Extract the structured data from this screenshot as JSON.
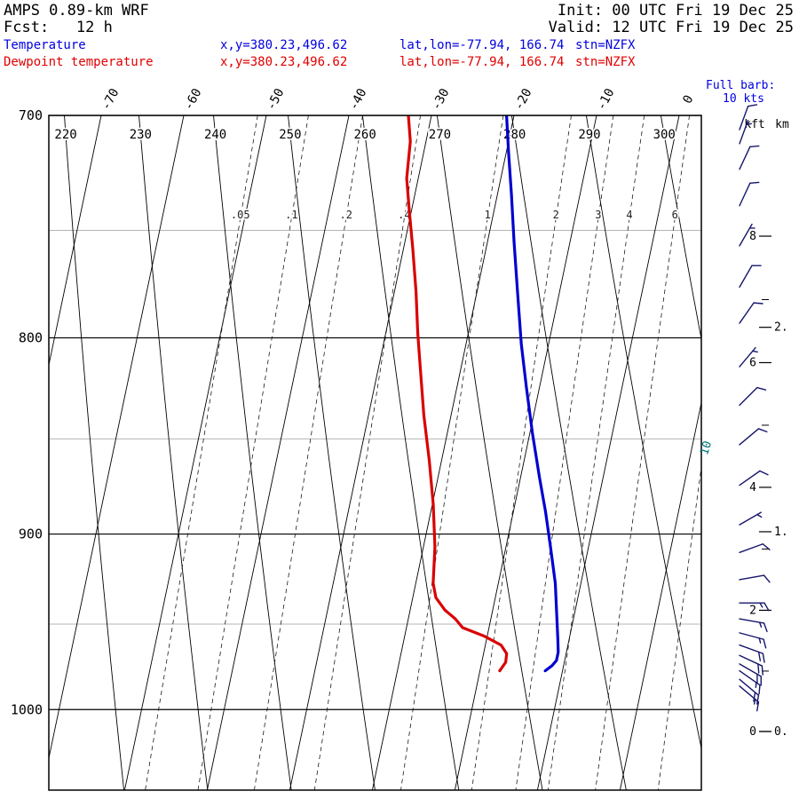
{
  "header": {
    "model": "AMPS 0.89-km WRF",
    "fcst": "Fcst:   12 h",
    "init": "Init: 00 UTC Fri 19 Dec 25",
    "valid": "Valid: 12 UTC Fri 19 Dec 25",
    "temp_label": "Temperature",
    "dewp_label": "Dewpoint temperature",
    "xy": "x,y=380.23,496.62",
    "latlon": "lat,lon=-77.94, 166.74",
    "stn": "stn=NZFX",
    "barb_legend_1": "Full barb:",
    "barb_legend_2": "10 kts"
  },
  "colors": {
    "temperature": "#0000d0",
    "dewpoint": "#d90000",
    "barb": "#16166b",
    "grid_minor": "#b5b5b5",
    "field_lines": "#000000",
    "mixing_edge_label": "#007474"
  },
  "chart_data": {
    "type": "line",
    "chart_kind": "skewt_logp_sounding",
    "station": "NZFX",
    "pressure_hpa_range": [
      700,
      1052
    ],
    "pressure_major_ticks": [
      700,
      800,
      900,
      1000
    ],
    "pressure_minor_ticks": [
      750,
      850,
      950
    ],
    "isotherm_labels_c": [
      -70,
      -60,
      -50,
      -40,
      -30,
      -20,
      -10,
      0
    ],
    "isotherms_c": [
      -70,
      -60,
      -50,
      -40,
      -30,
      -20,
      -10,
      0,
      10,
      20
    ],
    "dry_adiabat_labels_k": [
      220,
      230,
      240,
      250,
      260,
      270,
      280,
      290,
      300
    ],
    "dry_adiabats_k": [
      210,
      220,
      230,
      240,
      250,
      260,
      270,
      280,
      290,
      300
    ],
    "mixing_ratio_labels_gkg": [
      ".05",
      ".1",
      ".2",
      ".4",
      "1",
      "2",
      "3",
      "4",
      "6"
    ],
    "mixing_ratio_lines_gkg": [
      0.05,
      0.1,
      0.2,
      0.4,
      1,
      2,
      3,
      4,
      6,
      10
    ],
    "mixing_ratio_edge_label": "10",
    "altitude_axis": {
      "col1_header": "kft",
      "col2_header": "km",
      "kft_ticks": [
        0,
        2,
        4,
        6,
        8
      ],
      "kft_minor_ticks": [
        1,
        3,
        5,
        7
      ],
      "km_ticks": [
        "0.",
        "1.",
        "2."
      ]
    },
    "series": [
      {
        "name": "Temperature",
        "color": "#0000d0",
        "points_p_c": [
          [
            700,
            -20.9
          ],
          [
            716,
            -19.7
          ],
          [
            734,
            -18.3
          ],
          [
            755,
            -16.8
          ],
          [
            778,
            -15.1
          ],
          [
            803,
            -13.3
          ],
          [
            824,
            -11.6
          ],
          [
            847,
            -9.7
          ],
          [
            870,
            -7.7
          ],
          [
            888,
            -6.1
          ],
          [
            907,
            -4.6
          ],
          [
            927,
            -3.1
          ],
          [
            947,
            -2.0
          ],
          [
            958,
            -1.4
          ],
          [
            966,
            -1.0
          ],
          [
            971,
            -1.0
          ],
          [
            974,
            -1.4
          ],
          [
            977,
            -2.1
          ]
        ]
      },
      {
        "name": "Dewpoint temperature",
        "color": "#d90000",
        "points_p_c": [
          [
            700,
            -32.8
          ],
          [
            711,
            -31.9
          ],
          [
            727,
            -31.4
          ],
          [
            742,
            -30.2
          ],
          [
            758,
            -28.9
          ],
          [
            778,
            -27.4
          ],
          [
            798,
            -26.1
          ],
          [
            815,
            -24.9
          ],
          [
            838,
            -23.3
          ],
          [
            861,
            -21.5
          ],
          [
            884,
            -19.9
          ],
          [
            907,
            -18.6
          ],
          [
            927,
            -17.9
          ],
          [
            935,
            -17.2
          ],
          [
            942,
            -15.8
          ],
          [
            947,
            -14.3
          ],
          [
            952,
            -13.2
          ],
          [
            957,
            -10.3
          ],
          [
            962,
            -8.1
          ],
          [
            967,
            -7.2
          ],
          [
            972,
            -7.1
          ],
          [
            977,
            -7.6
          ]
        ]
      }
    ],
    "wind_barbs_p_kts_dir": [
      [
        706,
        10,
        20
      ],
      [
        712,
        5,
        20
      ],
      [
        723,
        10,
        25
      ],
      [
        739,
        10,
        25
      ],
      [
        757,
        5,
        30
      ],
      [
        776,
        8,
        30
      ],
      [
        793,
        10,
        35
      ],
      [
        814,
        5,
        40
      ],
      [
        833,
        10,
        45
      ],
      [
        853,
        10,
        50
      ],
      [
        874,
        10,
        55
      ],
      [
        895,
        5,
        60
      ],
      [
        910,
        10,
        70
      ],
      [
        925,
        10,
        80
      ],
      [
        938,
        15,
        90
      ],
      [
        947,
        15,
        100
      ],
      [
        955,
        15,
        105
      ],
      [
        962,
        20,
        110
      ],
      [
        968,
        20,
        115
      ],
      [
        973,
        20,
        120
      ],
      [
        977,
        15,
        125
      ],
      [
        982,
        20,
        130
      ],
      [
        986,
        15,
        130
      ]
    ],
    "barb_legend": "Full barb: 10 kts"
  }
}
